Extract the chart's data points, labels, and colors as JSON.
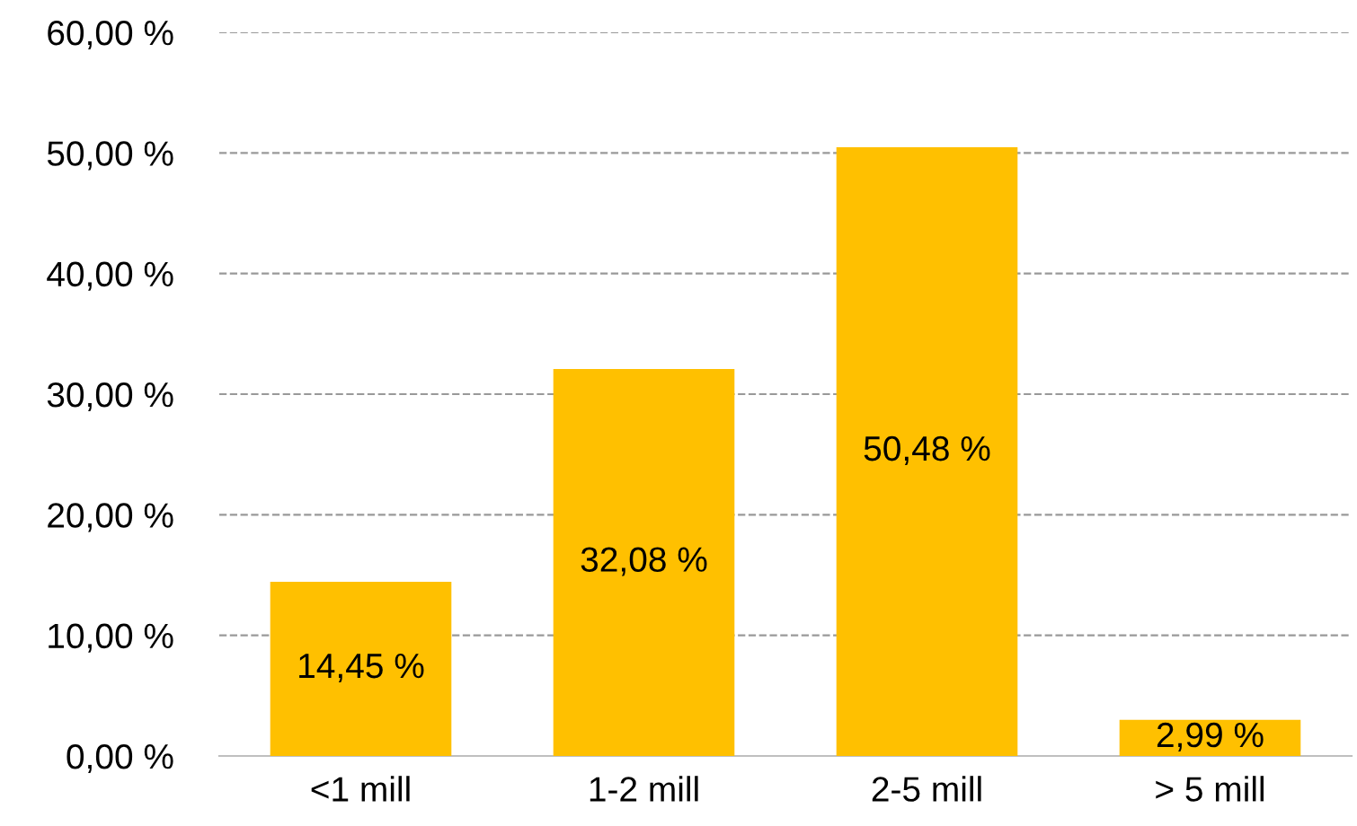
{
  "chart_data": {
    "type": "bar",
    "categories": [
      "<1 mill",
      "1-2 mill",
      "2-5 mill",
      "> 5 mill"
    ],
    "values": [
      14.45,
      32.08,
      50.48,
      2.99
    ],
    "value_labels": [
      "14,45 %",
      "32,08 %",
      "50,48 %",
      "2,99 %"
    ],
    "color": "#ffc000",
    "ylim": [
      0,
      60
    ],
    "yticks": [
      {
        "value": 0,
        "label": "0,00 %"
      },
      {
        "value": 10,
        "label": "10,00 %"
      },
      {
        "value": 20,
        "label": "20,00 %"
      },
      {
        "value": 30,
        "label": "30,00 %"
      },
      {
        "value": 40,
        "label": "40,00 %"
      },
      {
        "value": 50,
        "label": "50,00 %"
      },
      {
        "value": 60,
        "label": "60,00 %"
      }
    ],
    "grid": "y",
    "line_style": "dashed",
    "legend": false
  }
}
